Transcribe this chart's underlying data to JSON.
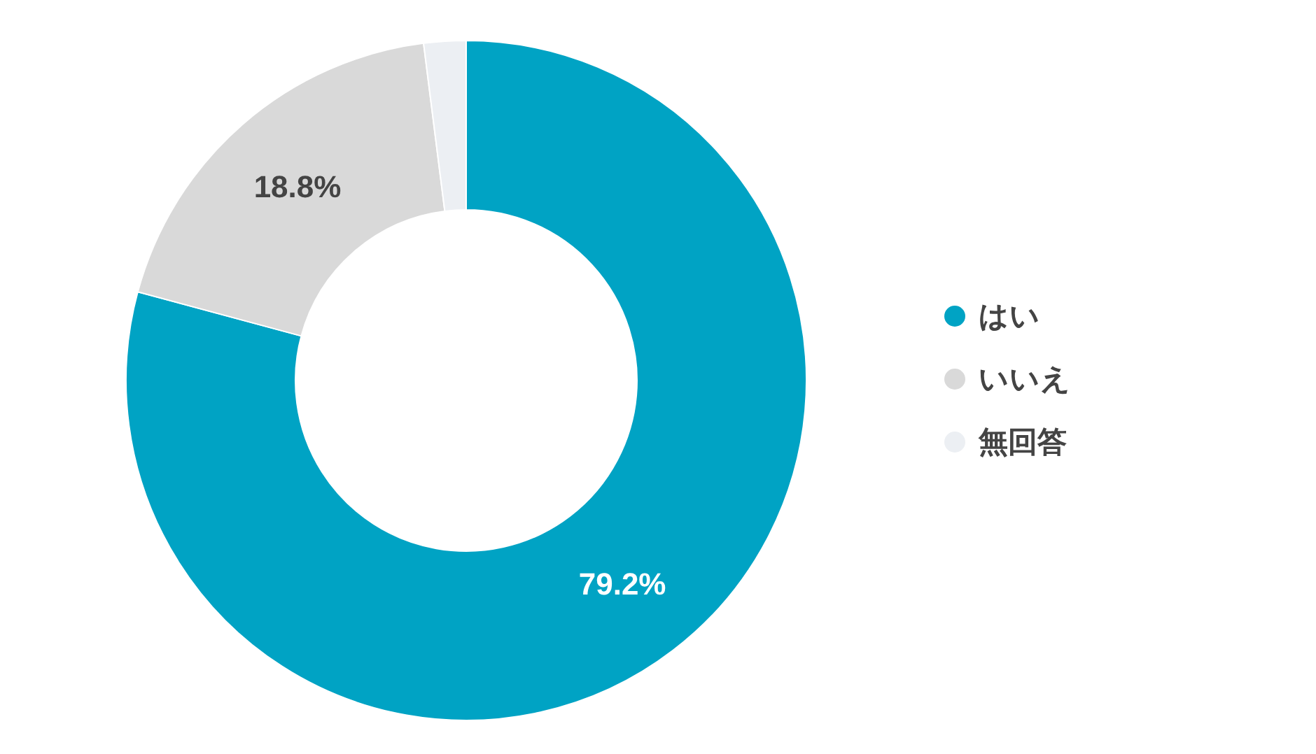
{
  "chart_data": {
    "type": "donut",
    "categories": [
      "はい",
      "いいえ",
      "無回答"
    ],
    "values": [
      79.2,
      18.8,
      2.0
    ],
    "colors": [
      "#00a3c4",
      "#d9d9d9",
      "#eceff3"
    ],
    "value_labels": [
      "79.2%",
      "18.8%",
      null
    ],
    "legend": "right"
  }
}
